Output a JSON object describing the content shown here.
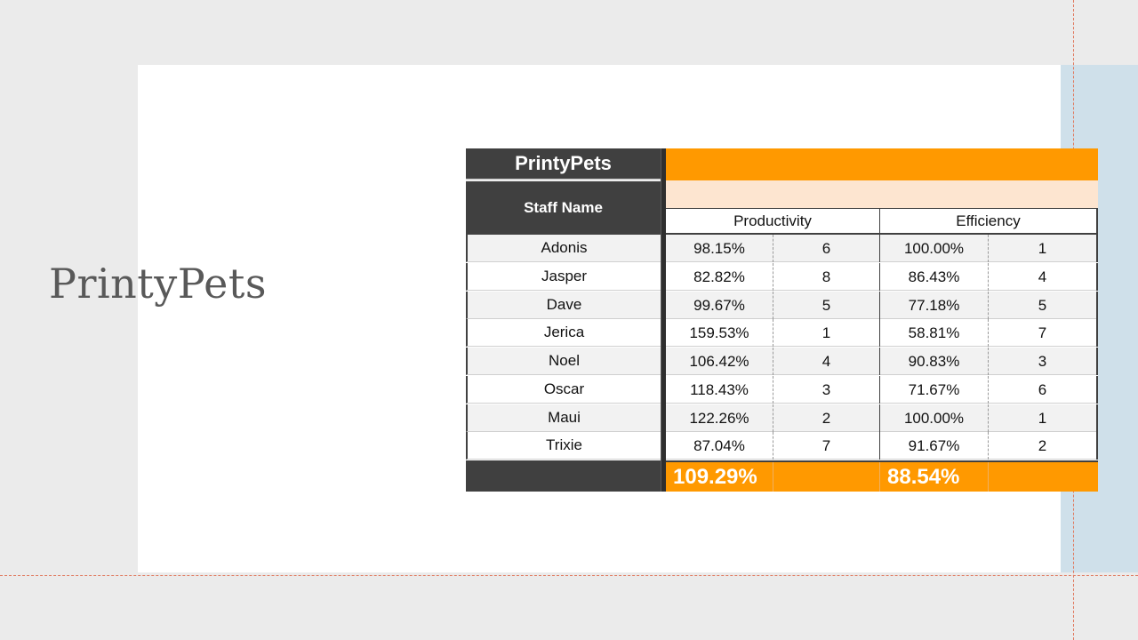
{
  "slide": {
    "title": "PrintyPets"
  },
  "sheet": {
    "brand": "PrintyPets",
    "staff_header": "Staff Name",
    "groups": {
      "productivity": "Productivity",
      "efficiency": "Efficiency"
    },
    "rows": [
      {
        "name": "Adonis",
        "productivity": "98.15%",
        "prod_rank": "6",
        "efficiency": "100.00%",
        "eff_rank": "1"
      },
      {
        "name": "Jasper",
        "productivity": "82.82%",
        "prod_rank": "8",
        "efficiency": "86.43%",
        "eff_rank": "4"
      },
      {
        "name": "Dave",
        "productivity": "99.67%",
        "prod_rank": "5",
        "efficiency": "77.18%",
        "eff_rank": "5"
      },
      {
        "name": "Jerica",
        "productivity": "159.53%",
        "prod_rank": "1",
        "efficiency": "58.81%",
        "eff_rank": "7"
      },
      {
        "name": "Noel",
        "productivity": "106.42%",
        "prod_rank": "4",
        "efficiency": "90.83%",
        "eff_rank": "3"
      },
      {
        "name": "Oscar",
        "productivity": "118.43%",
        "prod_rank": "3",
        "efficiency": "71.67%",
        "eff_rank": "6"
      },
      {
        "name": "Maui",
        "productivity": "122.26%",
        "prod_rank": "2",
        "efficiency": "100.00%",
        "eff_rank": "1"
      },
      {
        "name": "Trixie",
        "productivity": "87.04%",
        "prod_rank": "7",
        "efficiency": "91.67%",
        "eff_rank": "2"
      }
    ],
    "totals": {
      "productivity": "109.29%",
      "efficiency": "88.54%"
    }
  },
  "colors": {
    "background": "#ebebeb",
    "slide": "#ffffff",
    "accent_panel": "#cfe0ea",
    "header_dark": "#404040",
    "orange": "#ff9900",
    "peach": "#fde5d0",
    "guide": "#e07a5f"
  }
}
